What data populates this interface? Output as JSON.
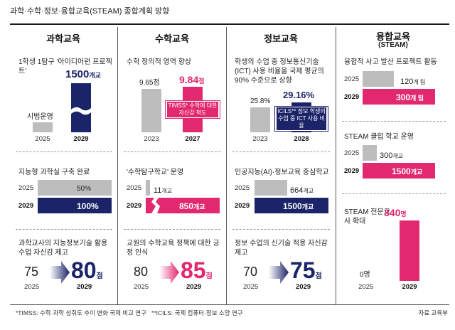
{
  "title": "과학·수학·정보·융합교육(STEAM) 종합계획 방향",
  "columns": {
    "science": {
      "title": "과학교육"
    },
    "math": {
      "title": "수학교육"
    },
    "info": {
      "title": "정보교육"
    },
    "steam": {
      "title": "융합교육",
      "subtitle": "(STEAM)"
    }
  },
  "science": {
    "s1": {
      "label": "1학생 1탐구 '아이디어런 프로젝트'",
      "base_text": "시범운영",
      "base_year": "2025",
      "target_num": "1500",
      "target_unit": "개교",
      "target_year": "2029"
    },
    "s2": {
      "label": "지능형 과학실 구축 완료",
      "y1": "2025",
      "v1": "50%",
      "y2": "2029",
      "v2": "100%"
    },
    "s3": {
      "label": "과학교사의 지능정보기술 활용 수업 자신감 제고",
      "from": "75",
      "from_year": "2025",
      "to": "80",
      "to_unit": "점",
      "to_year": "2029"
    }
  },
  "math": {
    "s1": {
      "label": "수학 정의적 영역 향상",
      "v1": "9.65점",
      "y1": "2023",
      "v2_num": "9.84",
      "v2_unit": "점",
      "y2": "2027",
      "note": "TIMSS* 수학에 대한 자신감 척도"
    },
    "s2": {
      "label": "'수학탐구학교' 운영",
      "y1": "2025",
      "v1_num": "11",
      "v1_unit": "개교",
      "y2": "2029",
      "v2_num": "850",
      "v2_unit": "개교"
    },
    "s3": {
      "label": "교원의 수학교육 정책에 대한 긍정 인식",
      "from": "80",
      "from_year": "2025",
      "to": "85",
      "to_unit": "점",
      "to_year": "2029"
    }
  },
  "info": {
    "s1": {
      "label": "학생의 수업 중 정보통신기술(ICT) 사용 비율을 국제 평균의 90% 수준으로 상향",
      "v1": "25.8%",
      "y1": "2023",
      "v2": "29.16%",
      "y2": "2028",
      "note": "ICILS** 정보 학생의 수업 중 ICT 사용 비율"
    },
    "s2": {
      "label": "인공지능(AI)·정보교육 중심학교",
      "y1": "2025",
      "v1_num": "664",
      "v1_unit": "개교",
      "y2": "2029",
      "v2_num": "1500",
      "v2_unit": "개교"
    },
    "s3": {
      "label": "정보 수업의 신기술 적용 자신감 제고",
      "from": "70",
      "from_year": "2025",
      "to": "75",
      "to_unit": "점",
      "to_year": "2029"
    }
  },
  "steam": {
    "s1": {
      "label": "융합적 사고 발산 프로젝트 활동",
      "y1": "2025",
      "v1_num": "120",
      "v1_unit": "개 팀",
      "y2": "2029",
      "v2_num": "300",
      "v2_unit": "개 팀"
    },
    "s2": {
      "label": "STEAM 클럽 학교 운영",
      "y1": "2025",
      "v1_num": "300",
      "v1_unit": "개교",
      "y2": "2029",
      "v2_num": "1500",
      "v2_unit": "개교"
    },
    "s3": {
      "label": "STEAM 전문교사 확대",
      "v1": "0명",
      "y1": "2025",
      "v2_num": "340",
      "v2_unit": "명",
      "y2": "2029"
    }
  },
  "footnote": "*TIMSS: 수학·과학 성취도 추이 변화 국제 비교 연구   **ICILS: 국제 컴퓨터·정보 소양 연구",
  "source": "자료 교육부",
  "colors": {
    "navy": "#1c2469",
    "pink": "#e2296f",
    "gray": "#bdbdbd"
  },
  "chart_data": [
    {
      "type": "bar",
      "title": "1학생 1탐구 '아이디어런 프로젝트'",
      "categories": [
        "2025",
        "2029"
      ],
      "values": [
        null,
        1500
      ],
      "unit": "개교",
      "annotation": "2025: 시범운영"
    },
    {
      "type": "bar",
      "title": "지능형 과학실 구축 완료",
      "categories": [
        "2025",
        "2029"
      ],
      "values": [
        50,
        100
      ],
      "unit": "%"
    },
    {
      "type": "bar",
      "title": "과학교사의 지능정보기술 활용 수업 자신감 제고",
      "categories": [
        "2025",
        "2029"
      ],
      "values": [
        75,
        80
      ],
      "unit": "점"
    },
    {
      "type": "bar",
      "title": "수학 정의적 영역 향상",
      "categories": [
        "2023",
        "2027"
      ],
      "values": [
        9.65,
        9.84
      ],
      "unit": "점"
    },
    {
      "type": "bar",
      "title": "'수학탐구학교' 운영",
      "categories": [
        "2025",
        "2029"
      ],
      "values": [
        11,
        850
      ],
      "unit": "개교"
    },
    {
      "type": "bar",
      "title": "교원의 수학교육 정책에 대한 긍정 인식",
      "categories": [
        "2025",
        "2029"
      ],
      "values": [
        80,
        85
      ],
      "unit": "점"
    },
    {
      "type": "bar",
      "title": "학생의 수업 중 정보통신기술(ICT) 사용 비율을 국제 평균의 90% 수준으로 상향",
      "categories": [
        "2023",
        "2028"
      ],
      "values": [
        25.8,
        29.16
      ],
      "unit": "%"
    },
    {
      "type": "bar",
      "title": "인공지능(AI)·정보교육 중심학교",
      "categories": [
        "2025",
        "2029"
      ],
      "values": [
        664,
        1500
      ],
      "unit": "개교"
    },
    {
      "type": "bar",
      "title": "정보 수업의 신기술 적용 자신감 제고",
      "categories": [
        "2025",
        "2029"
      ],
      "values": [
        70,
        75
      ],
      "unit": "점"
    },
    {
      "type": "bar",
      "title": "융합적 사고 발산 프로젝트 활동",
      "categories": [
        "2025",
        "2029"
      ],
      "values": [
        120,
        300
      ],
      "unit": "개 팀"
    },
    {
      "type": "bar",
      "title": "STEAM 클럽 학교 운영",
      "categories": [
        "2025",
        "2029"
      ],
      "values": [
        300,
        1500
      ],
      "unit": "개교"
    },
    {
      "type": "bar",
      "title": "STEAM 전문교사 확대",
      "categories": [
        "2025",
        "2029"
      ],
      "values": [
        0,
        340
      ],
      "unit": "명"
    }
  ]
}
